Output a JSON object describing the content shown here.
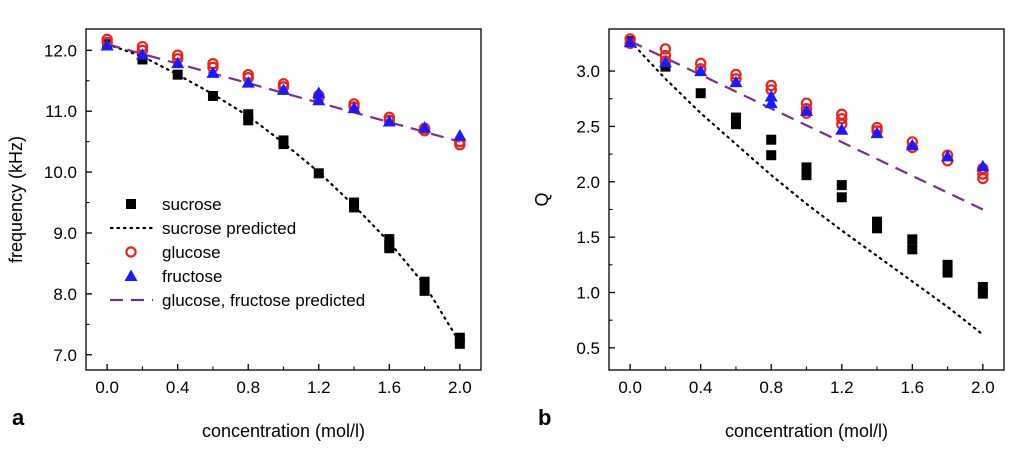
{
  "chart_data": [
    {
      "panel": "a",
      "type": "scatter",
      "xlabel": "concentration (mol/l)",
      "ylabel": "frequency (kHz)",
      "xlim": [
        -0.12,
        2.12
      ],
      "ylim": [
        6.75,
        12.35
      ],
      "xticks": [
        0.0,
        0.4,
        0.8,
        1.2,
        1.6,
        2.0
      ],
      "xtick_labels": [
        "0.0",
        "0.4",
        "0.8",
        "1.2",
        "1.6",
        "2.0"
      ],
      "yticks": [
        7.0,
        8.0,
        9.0,
        10.0,
        11.0,
        12.0
      ],
      "ytick_labels": [
        "7.0",
        "8.0",
        "9.0",
        "10.0",
        "11.0",
        "12.0"
      ],
      "legend": [
        {
          "key": "sucrose",
          "label": "sucrose"
        },
        {
          "key": "sucrose_predicted",
          "label": "sucrose predicted"
        },
        {
          "key": "glucose",
          "label": "glucose"
        },
        {
          "key": "fructose",
          "label": "fructose"
        },
        {
          "key": "gf_predicted",
          "label": "glucose, fructose predicted"
        }
      ],
      "series": [
        {
          "key": "sucrose",
          "name": "sucrose",
          "marker": "square",
          "color": "#000000",
          "x": [
            0.0,
            0.2,
            0.4,
            0.6,
            0.8,
            0.8,
            1.0,
            1.0,
            1.2,
            1.4,
            1.4,
            1.6,
            1.6,
            1.6,
            1.8,
            1.8,
            2.0,
            2.0
          ],
          "y": [
            12.1,
            11.85,
            11.6,
            11.25,
            10.95,
            10.85,
            10.52,
            10.46,
            9.98,
            9.5,
            9.42,
            8.9,
            8.8,
            8.75,
            8.2,
            8.05,
            7.28,
            7.18
          ]
        },
        {
          "key": "glucose",
          "name": "glucose",
          "marker": "circle",
          "color": "#e8231c",
          "x": [
            0.0,
            0.0,
            0.2,
            0.2,
            0.4,
            0.4,
            0.6,
            0.6,
            0.8,
            0.8,
            1.0,
            1.0,
            1.2,
            1.2,
            1.4,
            1.4,
            1.6,
            1.6,
            1.8,
            1.8,
            2.0,
            2.0
          ],
          "y": [
            12.18,
            12.13,
            12.06,
            12.0,
            11.92,
            11.86,
            11.78,
            11.72,
            11.6,
            11.55,
            11.45,
            11.4,
            11.26,
            11.22,
            11.12,
            11.07,
            10.9,
            10.85,
            10.72,
            10.68,
            10.5,
            10.45
          ]
        },
        {
          "key": "fructose",
          "name": "fructose",
          "marker": "triangle",
          "color": "#1a1aff",
          "x": [
            0.0,
            0.2,
            0.4,
            0.6,
            0.8,
            1.0,
            1.2,
            1.2,
            1.4,
            1.6,
            1.8,
            2.0
          ],
          "y": [
            12.08,
            11.93,
            11.79,
            11.63,
            11.47,
            11.35,
            11.3,
            11.18,
            11.05,
            10.83,
            10.73,
            10.6
          ]
        },
        {
          "key": "sucrose_predicted",
          "name": "sucrose predicted",
          "line": "dotted",
          "color": "#000000",
          "x": [
            0.0,
            0.2,
            0.4,
            0.6,
            0.8,
            1.0,
            1.2,
            1.4,
            1.6,
            1.8,
            2.0
          ],
          "y": [
            12.1,
            11.9,
            11.6,
            11.28,
            10.92,
            10.48,
            10.0,
            9.45,
            8.85,
            8.15,
            7.2
          ]
        },
        {
          "key": "gf_predicted",
          "name": "glucose, fructose predicted",
          "line": "dashed",
          "color": "#7b2d8e",
          "x": [
            0.0,
            2.0
          ],
          "y": [
            12.1,
            10.5
          ]
        }
      ]
    },
    {
      "panel": "b",
      "type": "scatter",
      "xlabel": "concentration (mol/l)",
      "ylabel": "Q",
      "xlim": [
        -0.12,
        2.12
      ],
      "ylim": [
        0.3,
        3.38
      ],
      "xticks": [
        0.0,
        0.4,
        0.8,
        1.2,
        1.6,
        2.0
      ],
      "xtick_labels": [
        "0.0",
        "0.4",
        "0.8",
        "1.2",
        "1.6",
        "2.0"
      ],
      "yticks": [
        0.5,
        1.0,
        1.5,
        2.0,
        2.5,
        3.0
      ],
      "ytick_labels": [
        "0.5",
        "1.0",
        "1.5",
        "2.0",
        "2.5",
        "3.0"
      ],
      "series": [
        {
          "key": "sucrose",
          "name": "sucrose",
          "marker": "square",
          "color": "#000000",
          "x": [
            0.0,
            0.2,
            0.4,
            0.6,
            0.6,
            0.8,
            0.8,
            1.0,
            1.0,
            1.2,
            1.2,
            1.4,
            1.4,
            1.6,
            1.6,
            1.8,
            1.8,
            2.0,
            2.0
          ],
          "y": [
            3.27,
            3.04,
            2.8,
            2.58,
            2.52,
            2.38,
            2.24,
            2.13,
            2.06,
            1.97,
            1.86,
            1.64,
            1.58,
            1.48,
            1.39,
            1.25,
            1.18,
            1.05,
            0.99
          ]
        },
        {
          "key": "glucose",
          "name": "glucose",
          "marker": "circle",
          "color": "#e8231c",
          "x": [
            0.0,
            0.0,
            0.2,
            0.2,
            0.2,
            0.4,
            0.4,
            0.6,
            0.6,
            0.8,
            0.8,
            1.0,
            1.0,
            1.0,
            1.2,
            1.2,
            1.2,
            1.4,
            1.4,
            1.6,
            1.6,
            1.8,
            1.8,
            2.0,
            2.0,
            2.0
          ],
          "y": [
            3.29,
            3.25,
            3.2,
            3.14,
            3.09,
            3.07,
            3.02,
            2.97,
            2.93,
            2.87,
            2.83,
            2.71,
            2.66,
            2.62,
            2.61,
            2.57,
            2.52,
            2.49,
            2.46,
            2.36,
            2.31,
            2.24,
            2.19,
            2.12,
            2.07,
            2.03
          ]
        },
        {
          "key": "fructose",
          "name": "fructose",
          "marker": "triangle",
          "color": "#1a1aff",
          "x": [
            0.0,
            0.2,
            0.4,
            0.6,
            0.8,
            0.8,
            1.0,
            1.2,
            1.4,
            1.6,
            1.8,
            2.0
          ],
          "y": [
            3.26,
            3.08,
            3.0,
            2.9,
            2.77,
            2.71,
            2.64,
            2.47,
            2.44,
            2.33,
            2.23,
            2.14
          ]
        },
        {
          "key": "sucrose_predicted",
          "name": "sucrose predicted",
          "line": "dotted",
          "color": "#000000",
          "x": [
            0.0,
            0.2,
            0.4,
            0.6,
            0.8,
            1.0,
            1.2,
            1.4,
            1.6,
            1.8,
            2.0
          ],
          "y": [
            3.27,
            2.93,
            2.62,
            2.34,
            2.06,
            1.8,
            1.56,
            1.33,
            1.1,
            0.87,
            0.62
          ]
        },
        {
          "key": "gf_predicted",
          "name": "glucose, fructose predicted",
          "line": "dashed",
          "color": "#7b2d8e",
          "x": [
            0.0,
            2.0
          ],
          "y": [
            3.27,
            1.75
          ]
        }
      ]
    }
  ]
}
